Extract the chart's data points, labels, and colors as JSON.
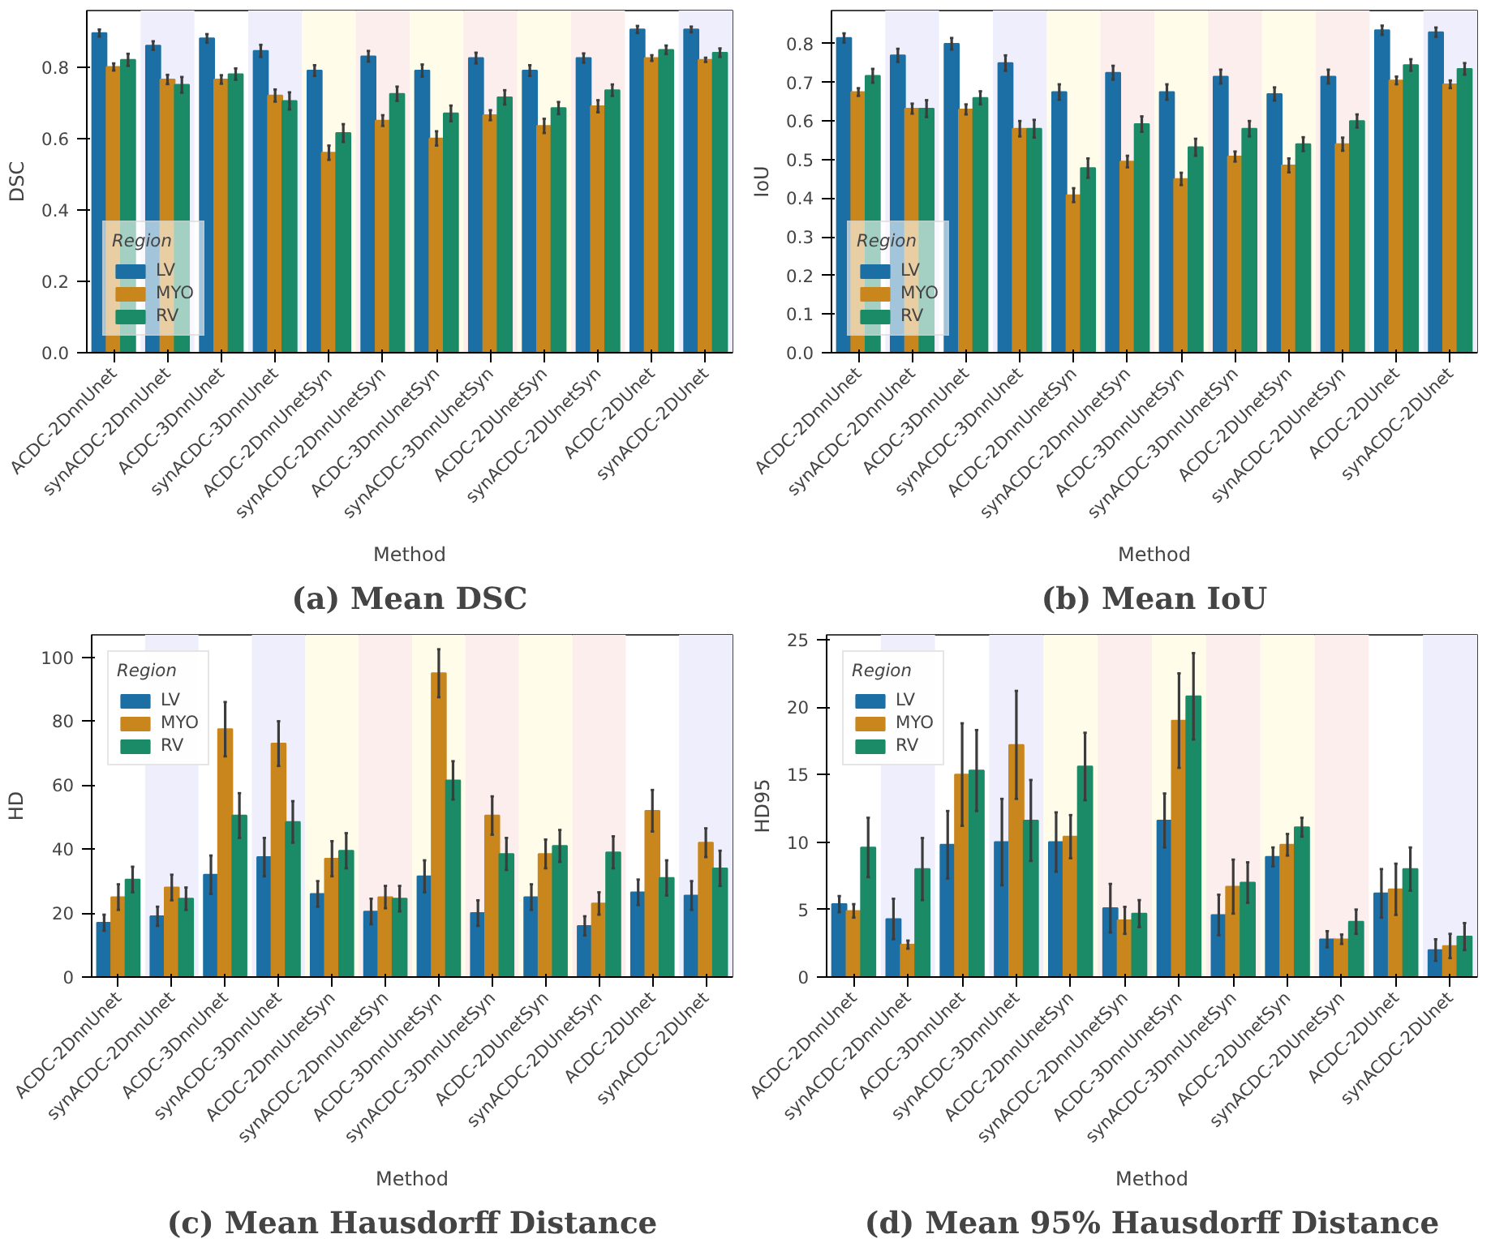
{
  "chart_data": [
    {
      "type": "bar",
      "title": "(a) Mean DSC",
      "xlabel": "Method",
      "ylabel": "DSC",
      "legend_title": "Region",
      "legend": "bottom left",
      "categories": [
        "ACDC-2DnnUnet",
        "synACDC-2DnnUnet",
        "ACDC-3DnnUnet",
        "synACDC-3DnnUnet",
        "ACDC-2DnnUnetSyn",
        "synACDC-2DnnUnetSyn",
        "ACDC-3DnnUnetSyn",
        "synACDC-3DnnUnetSyn",
        "ACDC-2DUnetSyn",
        "synACDC-2DUnetSyn",
        "ACDC-2DUnet",
        "synACDC-2DUnet"
      ],
      "series": [
        {
          "name": "LV",
          "color": "#1b6fa5",
          "values": [
            0.895,
            0.86,
            0.88,
            0.845,
            0.79,
            0.83,
            0.79,
            0.825,
            0.79,
            0.825,
            0.905,
            0.905
          ],
          "errors": [
            0.01,
            0.012,
            0.012,
            0.017,
            0.015,
            0.015,
            0.017,
            0.015,
            0.015,
            0.013,
            0.01,
            0.008
          ]
        },
        {
          "name": "MYO",
          "color": "#c9861d",
          "values": [
            0.8,
            0.765,
            0.765,
            0.72,
            0.56,
            0.65,
            0.6,
            0.665,
            0.635,
            0.69,
            0.825,
            0.82
          ],
          "errors": [
            0.01,
            0.013,
            0.012,
            0.017,
            0.02,
            0.015,
            0.02,
            0.014,
            0.02,
            0.017,
            0.008,
            0.006
          ]
        },
        {
          "name": "RV",
          "color": "#1b8a66",
          "values": [
            0.82,
            0.75,
            0.78,
            0.705,
            0.615,
            0.725,
            0.67,
            0.715,
            0.685,
            0.735,
            0.848,
            0.84
          ],
          "errors": [
            0.017,
            0.022,
            0.016,
            0.024,
            0.025,
            0.02,
            0.022,
            0.02,
            0.017,
            0.016,
            0.012,
            0.012
          ]
        }
      ],
      "ylim": [
        0,
        0.958
      ],
      "yticks": [
        {
          "value": 0,
          "label": "0.0"
        },
        {
          "value": 0.2,
          "label": "0.2"
        },
        {
          "value": 0.4,
          "label": "0.4"
        },
        {
          "value": 0.6,
          "label": "0.6"
        },
        {
          "value": 0.8,
          "label": "0.8"
        }
      ],
      "bands": [
        {
          "axis": "x",
          "from": "synACDC-2DnnUnet",
          "to": "synACDC-2DnnUnet",
          "color": "#eeeefc"
        },
        {
          "axis": "x",
          "from": "synACDC-3DnnUnet",
          "to": "synACDC-3DnnUnet",
          "color": "#eeeefc"
        },
        {
          "axis": "x",
          "from": "ACDC-2DnnUnetSyn",
          "to": "ACDC-2DnnUnetSyn",
          "color": "#fffdea"
        },
        {
          "axis": "x",
          "from": "synACDC-2DnnUnetSyn",
          "to": "synACDC-2DnnUnetSyn",
          "color": "#fdeeee"
        },
        {
          "axis": "x",
          "from": "ACDC-3DnnUnetSyn",
          "to": "ACDC-3DnnUnetSyn",
          "color": "#fffdea"
        },
        {
          "axis": "x",
          "from": "synACDC-3DnnUnetSyn",
          "to": "synACDC-3DnnUnetSyn",
          "color": "#fdeeee"
        },
        {
          "axis": "x",
          "from": "ACDC-2DUnetSyn",
          "to": "ACDC-2DUnetSyn",
          "color": "#fffdea"
        },
        {
          "axis": "x",
          "from": "synACDC-2DUnetSyn",
          "to": "synACDC-2DUnetSyn",
          "color": "#fdeeee"
        },
        {
          "axis": "x",
          "from": "synACDC-2DUnet",
          "to": "synACDC-2DUnet",
          "color": "#eeeefc"
        }
      ]
    },
    {
      "type": "bar",
      "title": "(b) Mean IoU",
      "xlabel": "Method",
      "ylabel": "IoU",
      "legend_title": "Region",
      "legend": "bottom left",
      "categories": [
        "ACDC-2DnnUnet",
        "synACDC-2DnnUnet",
        "ACDC-3DnnUnet",
        "synACDC-3DnnUnet",
        "ACDC-2DnnUnetSyn",
        "synACDC-2DnnUnetSyn",
        "ACDC-3DnnUnetSyn",
        "synACDC-3DnnUnetSyn",
        "ACDC-2DUnetSyn",
        "synACDC-2DUnetSyn",
        "ACDC-2DUnet",
        "synACDC-2DUnet"
      ],
      "series": [
        {
          "name": "LV",
          "color": "#1b6fa5",
          "values": [
            0.815,
            0.77,
            0.8,
            0.75,
            0.675,
            0.725,
            0.675,
            0.715,
            0.67,
            0.715,
            0.835,
            0.83
          ],
          "errors": [
            0.012,
            0.017,
            0.015,
            0.02,
            0.02,
            0.018,
            0.02,
            0.018,
            0.017,
            0.018,
            0.012,
            0.012
          ]
        },
        {
          "name": "MYO",
          "color": "#c9861d",
          "values": [
            0.675,
            0.632,
            0.63,
            0.58,
            0.408,
            0.495,
            0.45,
            0.508,
            0.485,
            0.54,
            0.705,
            0.695
          ],
          "errors": [
            0.01,
            0.013,
            0.013,
            0.02,
            0.018,
            0.015,
            0.016,
            0.013,
            0.018,
            0.017,
            0.01,
            0.01
          ]
        },
        {
          "name": "RV",
          "color": "#1b8a66",
          "values": [
            0.717,
            0.632,
            0.66,
            0.58,
            0.478,
            0.592,
            0.532,
            0.58,
            0.54,
            0.6,
            0.745,
            0.735
          ],
          "errors": [
            0.018,
            0.022,
            0.017,
            0.023,
            0.025,
            0.02,
            0.022,
            0.02,
            0.018,
            0.017,
            0.015,
            0.015
          ]
        }
      ],
      "ylim": [
        0,
        0.886
      ],
      "yticks": [
        {
          "value": 0,
          "label": "0.0"
        },
        {
          "value": 0.1,
          "label": "0.1"
        },
        {
          "value": 0.2,
          "label": "0.2"
        },
        {
          "value": 0.3,
          "label": "0.3"
        },
        {
          "value": 0.4,
          "label": "0.4"
        },
        {
          "value": 0.5,
          "label": "0.5"
        },
        {
          "value": 0.6,
          "label": "0.6"
        },
        {
          "value": 0.7,
          "label": "0.7"
        },
        {
          "value": 0.8,
          "label": "0.8"
        }
      ],
      "bands": [
        {
          "axis": "x",
          "from": "synACDC-2DnnUnet",
          "to": "synACDC-2DnnUnet",
          "color": "#eeeefc"
        },
        {
          "axis": "x",
          "from": "synACDC-3DnnUnet",
          "to": "synACDC-3DnnUnet",
          "color": "#eeeefc"
        },
        {
          "axis": "x",
          "from": "ACDC-2DnnUnetSyn",
          "to": "ACDC-2DnnUnetSyn",
          "color": "#fffdea"
        },
        {
          "axis": "x",
          "from": "synACDC-2DnnUnetSyn",
          "to": "synACDC-2DnnUnetSyn",
          "color": "#fdeeee"
        },
        {
          "axis": "x",
          "from": "ACDC-3DnnUnetSyn",
          "to": "ACDC-3DnnUnetSyn",
          "color": "#fffdea"
        },
        {
          "axis": "x",
          "from": "synACDC-3DnnUnetSyn",
          "to": "synACDC-3DnnUnetSyn",
          "color": "#fdeeee"
        },
        {
          "axis": "x",
          "from": "ACDC-2DUnetSyn",
          "to": "ACDC-2DUnetSyn",
          "color": "#fffdea"
        },
        {
          "axis": "x",
          "from": "synACDC-2DUnetSyn",
          "to": "synACDC-2DUnetSyn",
          "color": "#fdeeee"
        },
        {
          "axis": "x",
          "from": "synACDC-2DUnet",
          "to": "synACDC-2DUnet",
          "color": "#eeeefc"
        }
      ]
    },
    {
      "type": "bar",
      "title": "(c) Mean Hausdorff Distance",
      "xlabel": "Method",
      "ylabel": "HD",
      "legend_title": "Region",
      "legend": "top left",
      "categories": [
        "ACDC-2DnnUnet",
        "synACDC-2DnnUnet",
        "ACDC-3DnnUnet",
        "synACDC-3DnnUnet",
        "ACDC-2DnnUnetSyn",
        "synACDC-2DnnUnetSyn",
        "ACDC-3DnnUnetSyn",
        "synACDC-3DnnUnetSyn",
        "ACDC-2DUnetSyn",
        "synACDC-2DUnetSyn",
        "ACDC-2DUnet",
        "synACDC-2DUnet"
      ],
      "series": [
        {
          "name": "LV",
          "color": "#1b6fa5",
          "values": [
            17,
            19,
            32,
            37.5,
            26,
            20.5,
            31.5,
            20,
            25,
            16,
            26.5,
            25.5
          ],
          "errors": [
            2.5,
            3,
            6,
            6,
            4,
            4,
            5,
            4,
            4,
            3,
            4,
            4.5
          ]
        },
        {
          "name": "MYO",
          "color": "#c9861d",
          "values": [
            25,
            28,
            77.5,
            73,
            37,
            25,
            95,
            50.5,
            38.5,
            23,
            52,
            42
          ],
          "errors": [
            4,
            4,
            8.5,
            7,
            5.5,
            3.5,
            7.5,
            6,
            4.5,
            3.5,
            6.5,
            4.5
          ]
        },
        {
          "name": "RV",
          "color": "#1b8a66",
          "values": [
            30.5,
            24.5,
            50.5,
            48.5,
            39.5,
            24.5,
            61.5,
            38.5,
            41,
            39,
            31,
            34
          ],
          "errors": [
            4,
            3.5,
            7,
            6.5,
            5.5,
            4,
            6,
            5,
            5,
            5,
            5.5,
            5.5
          ]
        }
      ],
      "ylim": [
        0,
        107
      ],
      "yticks": [
        0,
        20,
        40,
        60,
        80,
        100
      ],
      "bands": [
        {
          "axis": "x",
          "from": "synACDC-2DnnUnet",
          "to": "synACDC-2DnnUnet",
          "color": "#eeeefc"
        },
        {
          "axis": "x",
          "from": "synACDC-3DnnUnet",
          "to": "synACDC-3DnnUnet",
          "color": "#eeeefc"
        },
        {
          "axis": "x",
          "from": "ACDC-2DnnUnetSyn",
          "to": "ACDC-2DnnUnetSyn",
          "color": "#fffdea"
        },
        {
          "axis": "x",
          "from": "synACDC-2DnnUnetSyn",
          "to": "synACDC-2DnnUnetSyn",
          "color": "#fdeeee"
        },
        {
          "axis": "x",
          "from": "ACDC-3DnnUnetSyn",
          "to": "ACDC-3DnnUnetSyn",
          "color": "#fffdea"
        },
        {
          "axis": "x",
          "from": "synACDC-3DnnUnetSyn",
          "to": "synACDC-3DnnUnetSyn",
          "color": "#fdeeee"
        },
        {
          "axis": "x",
          "from": "ACDC-2DUnetSyn",
          "to": "ACDC-2DUnetSyn",
          "color": "#fffdea"
        },
        {
          "axis": "x",
          "from": "synACDC-2DUnetSyn",
          "to": "synACDC-2DUnetSyn",
          "color": "#fdeeee"
        },
        {
          "axis": "x",
          "from": "synACDC-2DUnet",
          "to": "synACDC-2DUnet",
          "color": "#eeeefc"
        }
      ]
    },
    {
      "type": "bar",
      "title": "(d) Mean 95% Hausdorff Distance",
      "xlabel": "Method",
      "ylabel": "HD95",
      "legend_title": "Region",
      "legend": "top left",
      "categories": [
        "ACDC-2DnnUnet",
        "synACDC-2DnnUnet",
        "ACDC-3DnnUnet",
        "synACDC-3DnnUnet",
        "ACDC-2DnnUnetSyn",
        "synACDC-2DnnUnetSyn",
        "ACDC-3DnnUnetSyn",
        "synACDC-3DnnUnetSyn",
        "ACDC-2DUnetSyn",
        "synACDC-2DUnetSyn",
        "ACDC-2DUnet",
        "synACDC-2DUnet"
      ],
      "series": [
        {
          "name": "LV",
          "color": "#1b6fa5",
          "values": [
            5.4,
            4.3,
            9.8,
            10.0,
            10.0,
            5.1,
            11.6,
            4.6,
            8.9,
            2.8,
            6.2,
            2.0
          ],
          "errors": [
            0.6,
            1.5,
            2.5,
            3.2,
            2.2,
            1.8,
            2.0,
            1.5,
            0.7,
            0.6,
            1.8,
            0.8
          ]
        },
        {
          "name": "MYO",
          "color": "#c9861d",
          "values": [
            4.9,
            2.4,
            15.0,
            17.2,
            10.4,
            4.2,
            19.0,
            6.7,
            9.8,
            2.8,
            6.5,
            2.3
          ],
          "errors": [
            0.5,
            0.3,
            3.8,
            4.0,
            1.6,
            1.0,
            3.5,
            2.0,
            0.8,
            0.35,
            1.9,
            0.9
          ]
        },
        {
          "name": "RV",
          "color": "#1b8a66",
          "values": [
            9.6,
            8.0,
            15.3,
            11.6,
            15.6,
            4.7,
            20.8,
            7.0,
            11.1,
            4.1,
            8.0,
            3.0
          ],
          "errors": [
            2.2,
            2.3,
            3.0,
            3.0,
            2.5,
            1.0,
            3.2,
            1.5,
            0.7,
            0.9,
            1.6,
            1.0
          ]
        }
      ],
      "ylim": [
        0,
        25.35
      ],
      "yticks": [
        0,
        5,
        10,
        15,
        20,
        25
      ],
      "bands": [
        {
          "axis": "x",
          "from": "synACDC-2DnnUnet",
          "to": "synACDC-2DnnUnet",
          "color": "#eeeefc"
        },
        {
          "axis": "x",
          "from": "synACDC-3DnnUnet",
          "to": "synACDC-3DnnUnet",
          "color": "#eeeefc"
        },
        {
          "axis": "x",
          "from": "ACDC-2DnnUnetSyn",
          "to": "ACDC-2DnnUnetSyn",
          "color": "#fffdea"
        },
        {
          "axis": "x",
          "from": "synACDC-2DnnUnetSyn",
          "to": "synACDC-2DnnUnetSyn",
          "color": "#fdeeee"
        },
        {
          "axis": "x",
          "from": "ACDC-3DnnUnetSyn",
          "to": "ACDC-3DnnUnetSyn",
          "color": "#fffdea"
        },
        {
          "axis": "x",
          "from": "synACDC-3DnnUnetSyn",
          "to": "synACDC-3DnnUnetSyn",
          "color": "#fdeeee"
        },
        {
          "axis": "x",
          "from": "ACDC-2DUnetSyn",
          "to": "ACDC-2DUnetSyn",
          "color": "#fffdea"
        },
        {
          "axis": "x",
          "from": "synACDC-2DUnetSyn",
          "to": "synACDC-2DUnetSyn",
          "color": "#fdeeee"
        },
        {
          "axis": "x",
          "from": "synACDC-2DUnet",
          "to": "synACDC-2DUnet",
          "color": "#eeeefc"
        }
      ]
    }
  ]
}
